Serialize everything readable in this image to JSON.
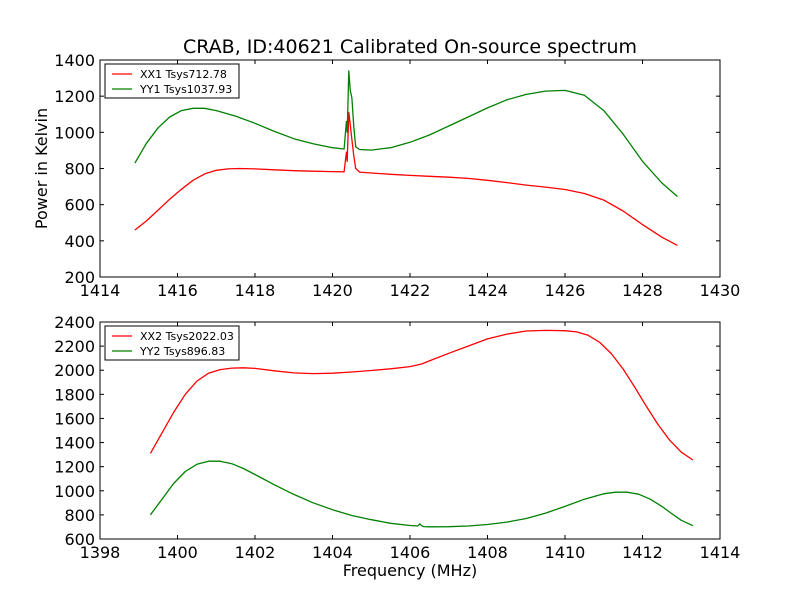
{
  "figure": {
    "title": "CRAB, ID:40621 Calibrated On-source spectrum",
    "colors": {
      "red": "#ff0000",
      "green": "#008000",
      "frame": "#000000",
      "background": "#ffffff"
    }
  },
  "chart_data": [
    {
      "type": "line",
      "title": "CRAB, ID:40621 Calibrated On-source spectrum",
      "xlabel": "",
      "ylabel": "Power in Kelvin",
      "xlim": [
        1414,
        1430
      ],
      "ylim": [
        200,
        1400
      ],
      "xticks": [
        "1414",
        "1416",
        "1418",
        "1420",
        "1422",
        "1424",
        "1426",
        "1428",
        "1430"
      ],
      "yticks": [
        "200",
        "400",
        "600",
        "800",
        "1000",
        "1200",
        "1400"
      ],
      "grid": false,
      "legend_position": "top-left",
      "series": [
        {
          "name": "XX1 Tsys712.78",
          "color": "#ff0000",
          "x": [
            1414.9,
            1415.2,
            1415.5,
            1415.8,
            1416.1,
            1416.4,
            1416.7,
            1417.0,
            1417.3,
            1417.6,
            1418.0,
            1418.5,
            1419.0,
            1419.5,
            1420.0,
            1420.3,
            1420.36,
            1420.38,
            1420.42,
            1420.46,
            1420.5,
            1420.55,
            1420.6,
            1420.7,
            1421.0,
            1421.5,
            1422.0,
            1422.5,
            1423.0,
            1423.5,
            1424.0,
            1424.5,
            1425.0,
            1425.5,
            1426.0,
            1426.5,
            1427.0,
            1427.5,
            1428.0,
            1428.5,
            1428.9
          ],
          "y": [
            460,
            510,
            570,
            630,
            685,
            735,
            770,
            790,
            798,
            800,
            798,
            793,
            788,
            785,
            783,
            782,
            890,
            840,
            1110,
            1040,
            960,
            870,
            800,
            780,
            775,
            768,
            762,
            757,
            752,
            745,
            735,
            722,
            708,
            697,
            684,
            662,
            625,
            565,
            490,
            420,
            375
          ]
        },
        {
          "name": "YY1 Tsys1037.93",
          "color": "#008000",
          "x": [
            1414.9,
            1415.2,
            1415.5,
            1415.8,
            1416.1,
            1416.4,
            1416.7,
            1417.0,
            1417.5,
            1418.0,
            1418.5,
            1419.0,
            1419.5,
            1420.0,
            1420.3,
            1420.36,
            1420.38,
            1420.42,
            1420.46,
            1420.5,
            1420.55,
            1420.6,
            1420.7,
            1421.0,
            1421.5,
            1422.0,
            1422.5,
            1423.0,
            1423.5,
            1424.0,
            1424.5,
            1425.0,
            1425.5,
            1426.0,
            1426.5,
            1427.0,
            1427.5,
            1428.0,
            1428.5,
            1428.9
          ],
          "y": [
            830,
            940,
            1025,
            1085,
            1120,
            1133,
            1133,
            1120,
            1090,
            1050,
            1005,
            965,
            937,
            915,
            908,
            1060,
            1000,
            1340,
            1230,
            1190,
            1030,
            920,
            905,
            902,
            915,
            945,
            985,
            1035,
            1085,
            1135,
            1180,
            1210,
            1228,
            1232,
            1205,
            1120,
            990,
            840,
            720,
            645
          ]
        }
      ]
    },
    {
      "type": "line",
      "title": "",
      "xlabel": "Frequency (MHz)",
      "ylabel": "",
      "xlim": [
        1398,
        1414
      ],
      "ylim": [
        600,
        2400
      ],
      "xticks": [
        "1398",
        "1400",
        "1402",
        "1404",
        "1406",
        "1408",
        "1410",
        "1412",
        "1414"
      ],
      "yticks": [
        "600",
        "800",
        "1000",
        "1200",
        "1400",
        "1600",
        "1800",
        "2000",
        "2200",
        "2400"
      ],
      "grid": false,
      "legend_position": "top-left",
      "series": [
        {
          "name": "XX2 Tsys2022.03",
          "color": "#ff0000",
          "x": [
            1399.3,
            1399.6,
            1399.9,
            1400.2,
            1400.5,
            1400.8,
            1401.1,
            1401.4,
            1401.7,
            1402.0,
            1402.5,
            1403.0,
            1403.5,
            1404.0,
            1404.5,
            1405.0,
            1405.5,
            1406.0,
            1406.3,
            1406.6,
            1407.0,
            1407.5,
            1408.0,
            1408.5,
            1409.0,
            1409.5,
            1410.0,
            1410.3,
            1410.6,
            1410.9,
            1411.2,
            1411.5,
            1411.8,
            1412.1,
            1412.4,
            1412.7,
            1413.0,
            1413.3
          ],
          "y": [
            1310,
            1480,
            1650,
            1800,
            1910,
            1975,
            2005,
            2018,
            2020,
            2015,
            1995,
            1978,
            1972,
            1975,
            1985,
            1998,
            2012,
            2030,
            2052,
            2090,
            2140,
            2200,
            2260,
            2300,
            2325,
            2330,
            2328,
            2318,
            2290,
            2230,
            2135,
            2010,
            1860,
            1700,
            1550,
            1420,
            1320,
            1255
          ]
        },
        {
          "name": "YY2 Tsys896.83",
          "color": "#008000",
          "x": [
            1399.3,
            1399.6,
            1399.9,
            1400.2,
            1400.5,
            1400.8,
            1401.1,
            1401.4,
            1401.7,
            1402.0,
            1402.5,
            1403.0,
            1403.5,
            1404.0,
            1404.5,
            1405.0,
            1405.5,
            1406.0,
            1406.2,
            1406.25,
            1406.3,
            1406.35,
            1406.5,
            1407.0,
            1407.5,
            1408.0,
            1408.5,
            1409.0,
            1409.5,
            1410.0,
            1410.5,
            1411.0,
            1411.3,
            1411.6,
            1411.9,
            1412.2,
            1412.5,
            1412.8,
            1413.0,
            1413.3
          ],
          "y": [
            800,
            930,
            1060,
            1160,
            1220,
            1245,
            1245,
            1225,
            1185,
            1135,
            1050,
            970,
            900,
            843,
            795,
            760,
            730,
            712,
            708,
            725,
            710,
            703,
            701,
            702,
            708,
            720,
            740,
            770,
            815,
            870,
            930,
            975,
            988,
            988,
            972,
            930,
            870,
            800,
            755,
            710
          ]
        }
      ]
    }
  ]
}
